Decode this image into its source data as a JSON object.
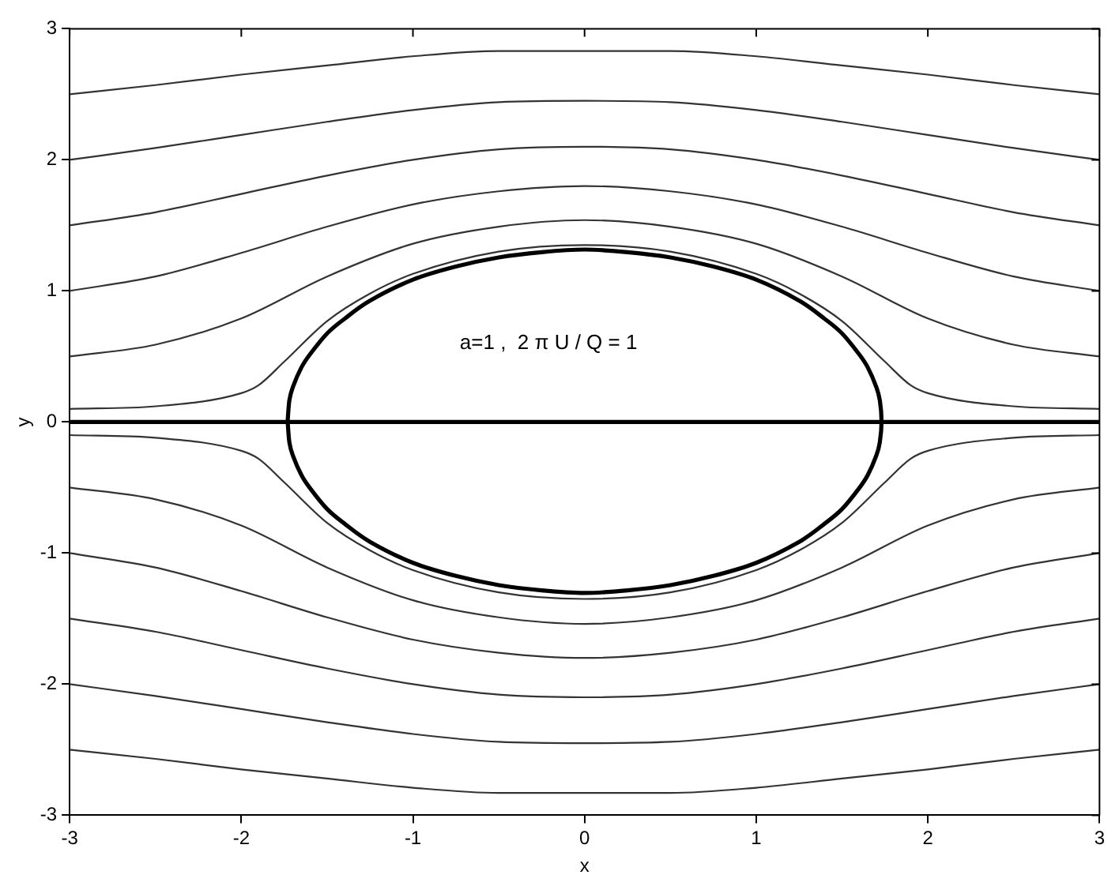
{
  "chart_data": {
    "type": "line",
    "xlabel": "x",
    "ylabel": "y",
    "annotations": [
      "a=1 ,  2 π U / Q = 1"
    ],
    "xlim": [
      -3,
      3
    ],
    "ylim": [
      -3,
      3
    ],
    "xticks": [
      -3,
      -2,
      -1,
      0,
      1,
      2,
      3
    ],
    "yticks": [
      -3,
      -2,
      -1,
      0,
      1,
      2,
      3
    ],
    "grid": false,
    "legend": false,
    "marker": "none",
    "line_style": "solid",
    "series": [
      {
        "color": "#333333",
        "x": [
          -3,
          -2.5,
          -2,
          -1.5,
          -1,
          -0.5,
          0,
          0.5,
          1,
          1.5,
          2,
          2.5,
          3
        ],
        "values": [
          2.5,
          2.57,
          2.65,
          2.72,
          2.79,
          2.83,
          2.83,
          2.83,
          2.79,
          2.72,
          2.65,
          2.57,
          2.5
        ]
      },
      {
        "color": "#333333",
        "x": [
          -3,
          -2.5,
          -2,
          -1.5,
          -1,
          -0.5,
          0,
          0.5,
          1,
          1.5,
          2,
          2.5,
          3
        ],
        "values": [
          2,
          2.09,
          2.19,
          2.29,
          2.38,
          2.44,
          2.45,
          2.44,
          2.38,
          2.29,
          2.19,
          2.09,
          2
        ]
      },
      {
        "color": "#333333",
        "x": [
          -3,
          -2.5,
          -2,
          -1.5,
          -1,
          -0.5,
          0,
          0.5,
          1,
          1.5,
          2,
          2.5,
          3
        ],
        "values": [
          1.5,
          1.6,
          1.74,
          1.88,
          2.0,
          2.08,
          2.1,
          2.08,
          2.0,
          1.88,
          1.74,
          1.6,
          1.5
        ]
      },
      {
        "color": "#333333",
        "x": [
          -3,
          -2.5,
          -2,
          -1.5,
          -1,
          -0.5,
          0,
          0.5,
          1,
          1.5,
          2,
          2.5,
          3
        ],
        "values": [
          1,
          1.11,
          1.29,
          1.49,
          1.66,
          1.76,
          1.8,
          1.76,
          1.66,
          1.49,
          1.29,
          1.11,
          1
        ]
      },
      {
        "color": "#333333",
        "x": [
          -3,
          -2.5,
          -2,
          -1.5,
          -1,
          -0.5,
          0,
          0.5,
          1,
          1.5,
          2,
          2.5,
          3
        ],
        "values": [
          0.5,
          0.59,
          0.79,
          1.11,
          1.36,
          1.49,
          1.54,
          1.49,
          1.36,
          1.11,
          0.79,
          0.59,
          0.5
        ]
      },
      {
        "color": "#333333",
        "x": [
          -3,
          -2.5,
          -2,
          -1.9,
          -1.75,
          -1.5,
          -1.25,
          -1,
          -0.5,
          0,
          0.5,
          1,
          1.25,
          1.5,
          1.75,
          1.9,
          2,
          2.5,
          3
        ],
        "values": [
          0.1,
          0.12,
          0.22,
          0.28,
          0.46,
          0.77,
          0.98,
          1.13,
          1.3,
          1.35,
          1.3,
          1.13,
          0.98,
          0.77,
          0.46,
          0.28,
          0.22,
          0.12,
          0.1
        ]
      },
      {
        "color": "#333333",
        "x": [
          -3,
          -2.5,
          -2,
          -1.5,
          -1,
          -0.5,
          0,
          0.5,
          1,
          1.5,
          2,
          2.5,
          3
        ],
        "values": [
          -2.5,
          -2.57,
          -2.65,
          -2.72,
          -2.79,
          -2.83,
          -2.83,
          -2.83,
          -2.79,
          -2.72,
          -2.65,
          -2.57,
          -2.5
        ]
      },
      {
        "color": "#333333",
        "x": [
          -3,
          -2.5,
          -2,
          -1.5,
          -1,
          -0.5,
          0,
          0.5,
          1,
          1.5,
          2,
          2.5,
          3
        ],
        "values": [
          -2,
          -2.09,
          -2.19,
          -2.29,
          -2.38,
          -2.44,
          -2.45,
          -2.44,
          -2.38,
          -2.29,
          -2.19,
          -2.09,
          -2
        ]
      },
      {
        "color": "#333333",
        "x": [
          -3,
          -2.5,
          -2,
          -1.5,
          -1,
          -0.5,
          0,
          0.5,
          1,
          1.5,
          2,
          2.5,
          3
        ],
        "values": [
          -1.5,
          -1.6,
          -1.74,
          -1.88,
          -2.0,
          -2.08,
          -2.1,
          -2.08,
          -2.0,
          -1.88,
          -1.74,
          -1.6,
          -1.5
        ]
      },
      {
        "color": "#333333",
        "x": [
          -3,
          -2.5,
          -2,
          -1.5,
          -1,
          -0.5,
          0,
          0.5,
          1,
          1.5,
          2,
          2.5,
          3
        ],
        "values": [
          -1,
          -1.11,
          -1.29,
          -1.49,
          -1.66,
          -1.76,
          -1.8,
          -1.76,
          -1.66,
          -1.49,
          -1.29,
          -1.11,
          -1
        ]
      },
      {
        "color": "#333333",
        "x": [
          -3,
          -2.5,
          -2,
          -1.5,
          -1,
          -0.5,
          0,
          0.5,
          1,
          1.5,
          2,
          2.5,
          3
        ],
        "values": [
          -0.5,
          -0.59,
          -0.79,
          -1.11,
          -1.36,
          -1.49,
          -1.54,
          -1.49,
          -1.36,
          -1.11,
          -0.79,
          -0.59,
          -0.5
        ]
      },
      {
        "color": "#333333",
        "x": [
          -3,
          -2.5,
          -2,
          -1.9,
          -1.75,
          -1.5,
          -1.25,
          -1,
          -0.5,
          0,
          0.5,
          1,
          1.25,
          1.5,
          1.75,
          1.9,
          2,
          2.5,
          3
        ],
        "values": [
          -0.1,
          -0.12,
          -0.22,
          -0.28,
          -0.46,
          -0.77,
          -0.98,
          -1.13,
          -1.3,
          -1.35,
          -1.3,
          -1.13,
          -0.98,
          -0.77,
          -0.46,
          -0.28,
          -0.22,
          -0.12,
          -0.1
        ]
      },
      {
        "color": "#000000",
        "x": [
          -3,
          3
        ],
        "values": [
          0,
          0
        ]
      }
    ]
  }
}
